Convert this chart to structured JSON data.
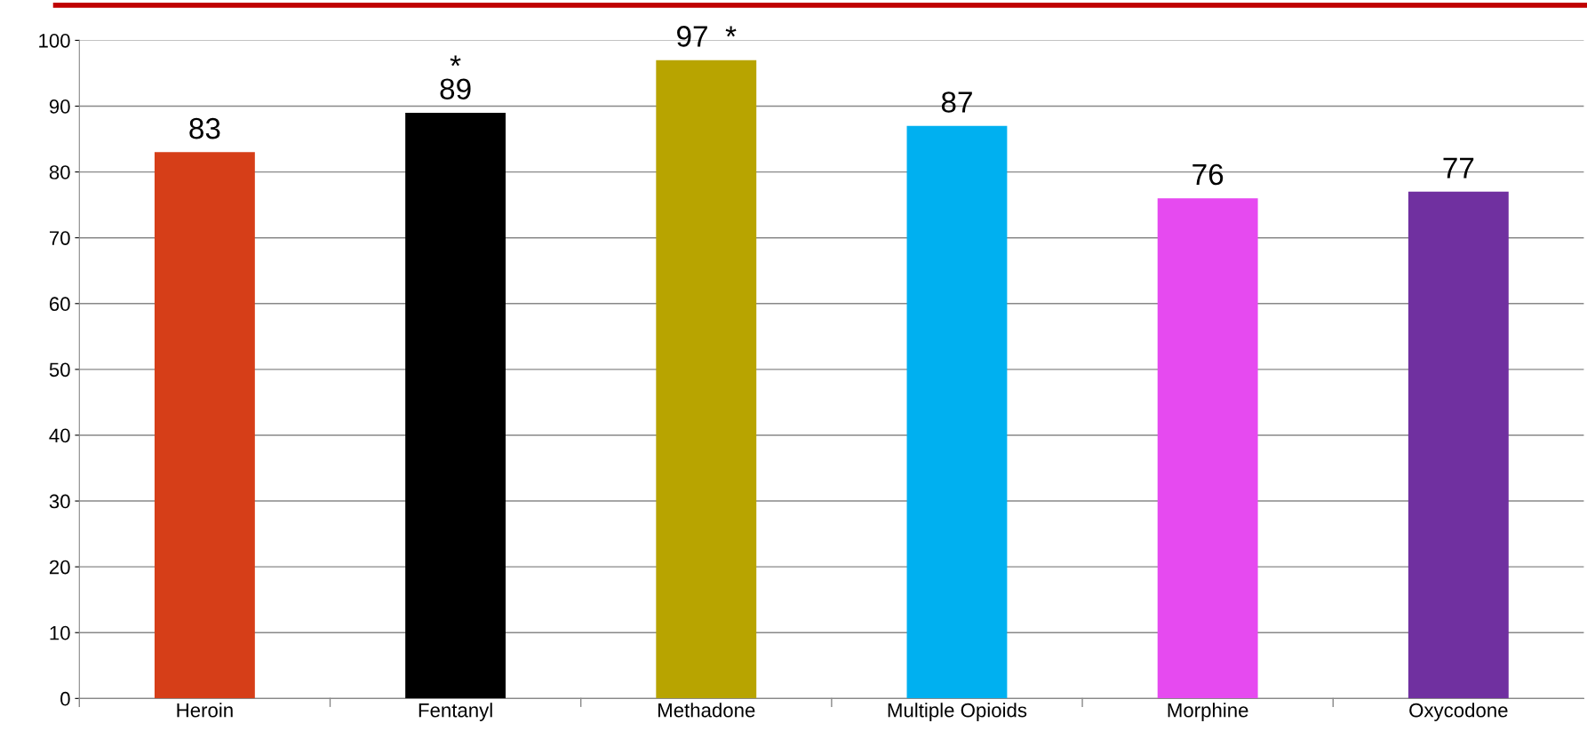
{
  "chart_data": {
    "type": "bar",
    "categories": [
      "Heroin",
      "Fentanyl",
      "Methadone",
      "Multiple Opioids",
      "Morphine",
      "Oxycodone"
    ],
    "values": [
      83,
      89,
      97,
      87,
      76,
      77
    ],
    "colors": [
      "#d63e18",
      "#000000",
      "#b8a400",
      "#00b0f0",
      "#e64af0",
      "#7030a0"
    ],
    "ylim": [
      0,
      100
    ],
    "yticks": [
      0,
      10,
      20,
      30,
      40,
      50,
      60,
      70,
      80,
      90,
      100
    ],
    "grid": "y",
    "value_labels": [
      "83",
      "*\n89",
      "97  *",
      "87",
      "76",
      "77"
    ]
  }
}
